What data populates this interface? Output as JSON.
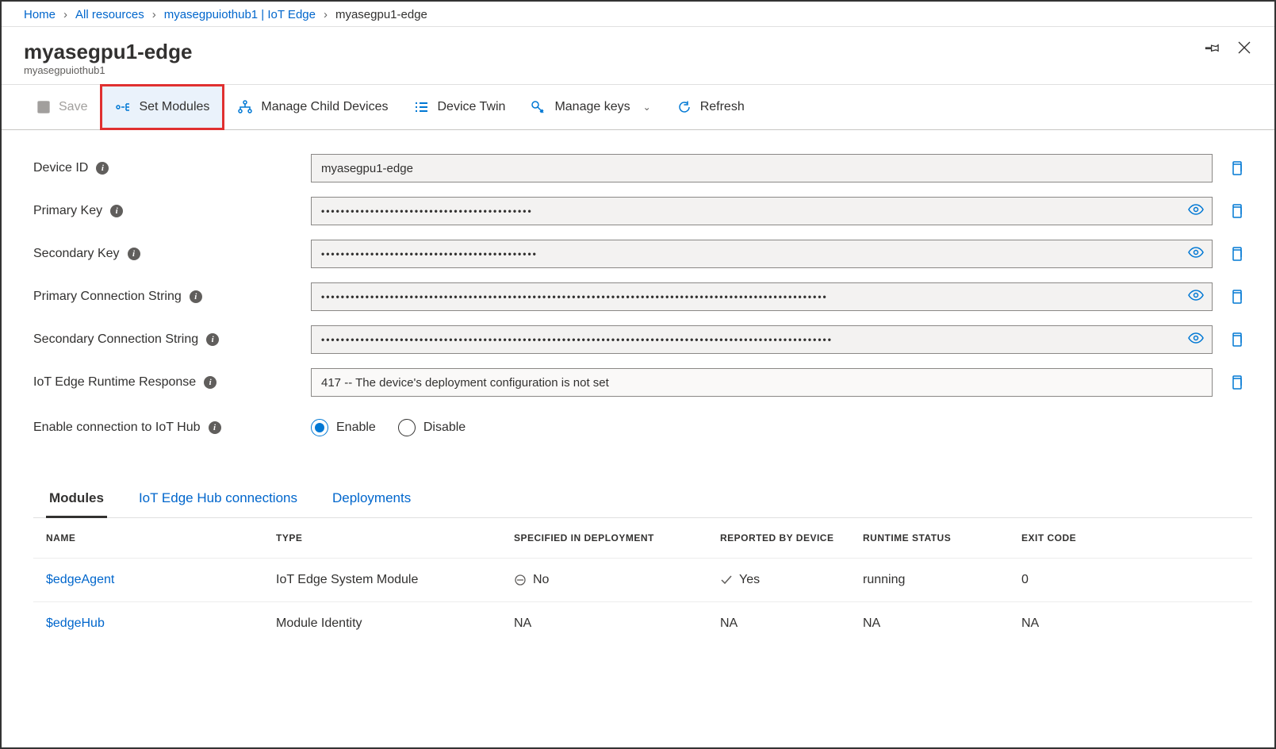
{
  "breadcrumb": {
    "home": "Home",
    "allres": "All resources",
    "hub": "myasegpuiothub1 | IoT Edge",
    "current": "myasegpu1-edge"
  },
  "header": {
    "title": "myasegpu1-edge",
    "subtitle": "myasegpuiothub1"
  },
  "toolbar": {
    "save": "Save",
    "setModules": "Set Modules",
    "manageChild": "Manage Child Devices",
    "deviceTwin": "Device Twin",
    "manageKeys": "Manage keys",
    "refresh": "Refresh"
  },
  "form": {
    "deviceId": {
      "label": "Device ID",
      "value": "myasegpu1-edge"
    },
    "primaryKey": {
      "label": "Primary Key",
      "value": "•••••••••••••••••••••••••••••••••••••••••••"
    },
    "secondaryKey": {
      "label": "Secondary Key",
      "value": "••••••••••••••••••••••••••••••••••••••••••••"
    },
    "primaryConn": {
      "label": "Primary Connection String",
      "value": "•••••••••••••••••••••••••••••••••••••••••••••••••••••••••••••••••••••••••••••••••••••••••••••••••••••••"
    },
    "secondaryConn": {
      "label": "Secondary Connection String",
      "value": "••••••••••••••••••••••••••••••••••••••••••••••••••••••••••••••••••••••••••••••••••••••••••••••••••••••••"
    },
    "runtimeResp": {
      "label": "IoT Edge Runtime Response",
      "value": "417 -- The device's deployment configuration is not set"
    },
    "enableConn": {
      "label": "Enable connection to IoT Hub",
      "enable": "Enable",
      "disable": "Disable"
    }
  },
  "tabs": {
    "modules": "Modules",
    "hubconn": "IoT Edge Hub connections",
    "deploy": "Deployments"
  },
  "table": {
    "headers": {
      "name": "NAME",
      "type": "TYPE",
      "spec": "SPECIFIED IN DEPLOYMENT",
      "rep": "REPORTED BY DEVICE",
      "rt": "RUNTIME STATUS",
      "exit": "EXIT CODE"
    },
    "rows": [
      {
        "name": "$edgeAgent",
        "type": "IoT Edge System Module",
        "spec": "No",
        "specIcon": "no",
        "rep": "Yes",
        "repIcon": "yes",
        "rt": "running",
        "exit": "0"
      },
      {
        "name": "$edgeHub",
        "type": "Module Identity",
        "spec": "NA",
        "specIcon": "",
        "rep": "NA",
        "repIcon": "",
        "rt": "NA",
        "exit": "NA"
      }
    ]
  }
}
